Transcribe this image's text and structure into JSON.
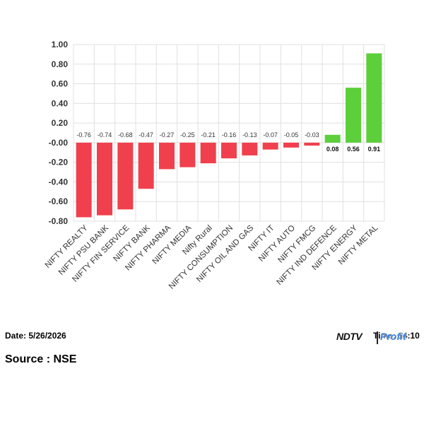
{
  "chart_data": {
    "type": "bar",
    "categories": [
      "NIFTY REALTY",
      "NIFTY PSU BANK",
      "NIFTY FIN SERVICE",
      "NIFTY BANK",
      "NIFTY PHARMA",
      "NIFTY MEDIA",
      "Nifty Rural",
      "NIFTY CONSUMPTION",
      "NIFTY OIL AND GAS",
      "NIFTY IT",
      "NIFTY AUTO",
      "NIFTY FMCG",
      "NIFTY IND DEFENCE",
      "NIFTY ENERGY",
      "NIFTY METAL"
    ],
    "values": [
      -0.76,
      -0.74,
      -0.68,
      -0.47,
      -0.27,
      -0.25,
      -0.21,
      -0.16,
      -0.13,
      -0.07,
      -0.05,
      -0.03,
      0.08,
      0.56,
      0.91
    ],
    "value_labels": [
      "-0.76",
      "-0.74",
      "-0.68",
      "-0.47",
      "-0.27",
      "-0.25",
      "-0.21",
      "-0.16",
      "-0.13",
      "-0.07",
      "-0.05",
      "-0.03",
      "0.08",
      "0.56",
      "0.91"
    ],
    "ylim": [
      -0.8,
      1.0
    ],
    "yticks": [
      1.0,
      0.8,
      0.6,
      0.4,
      0.2,
      0.0,
      -0.2,
      -0.4,
      -0.6,
      -0.8
    ],
    "ytick_labels": [
      "1.00",
      "0.80",
      "0.60",
      "0.40",
      "0.20",
      "-0.00",
      "-0.20",
      "-0.40",
      "-0.60",
      "-0.80"
    ],
    "grid": true,
    "colors": {
      "negative": "#f0404d",
      "positive": "#5ccf3b",
      "grid": "#e0e0e0"
    },
    "title": "",
    "xlabel": "",
    "ylabel": ""
  },
  "footer": {
    "date": "Date: 5/26/2026",
    "time": "Time: 14:10",
    "source": "Source : NSE",
    "logo_ndtv": "NDTV",
    "logo_profit": "Profit"
  }
}
